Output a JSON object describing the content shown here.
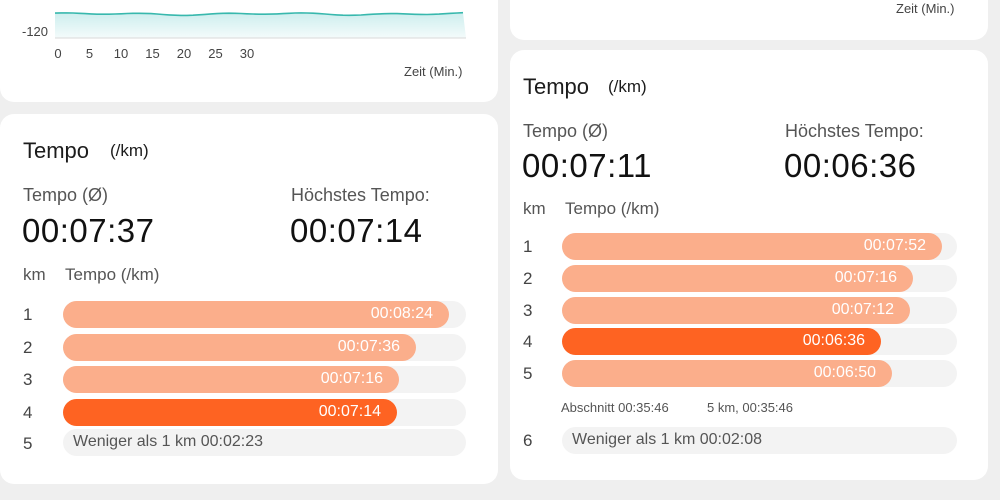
{
  "chart": {
    "y_tick_label": "-120",
    "x_ticks": [
      "0",
      "5",
      "10",
      "15",
      "20",
      "25",
      "30"
    ],
    "x_axis_title": "Zeit (Min.)",
    "line_color": "#38b8ad"
  },
  "top_right": {
    "x_axis_title": "Zeit (Min.)"
  },
  "left": {
    "title": "Tempo",
    "unit": "(/km)",
    "avg_label": "Tempo (Ø)",
    "avg_value": "00:07:37",
    "max_label": "Höchstes Tempo:",
    "max_value": "00:07:14",
    "col_km": "km",
    "col_tempo": "Tempo (/km)",
    "rows": [
      {
        "km": "1",
        "pace": "00:08:24",
        "fill": 0.958,
        "fastest": false
      },
      {
        "km": "2",
        "pace": "00:07:36",
        "fill": 0.875,
        "fastest": false
      },
      {
        "km": "3",
        "pace": "00:07:16",
        "fill": 0.833,
        "fastest": false
      },
      {
        "km": "4",
        "pace": "00:07:14",
        "fill": 0.829,
        "fastest": true
      }
    ],
    "rest": {
      "km": "5",
      "label": "Weniger als 1 km 00:02:23"
    }
  },
  "right": {
    "title": "Tempo",
    "unit": "(/km)",
    "avg_label": "Tempo (Ø)",
    "avg_value": "00:07:11",
    "max_label": "Höchstes Tempo:",
    "max_value": "00:06:36",
    "col_km": "km",
    "col_tempo": "Tempo (/km)",
    "rows": [
      {
        "km": "1",
        "pace": "00:07:52",
        "fill": 0.962,
        "fastest": false
      },
      {
        "km": "2",
        "pace": "00:07:16",
        "fill": 0.889,
        "fastest": false
      },
      {
        "km": "3",
        "pace": "00:07:12",
        "fill": 0.881,
        "fastest": false
      },
      {
        "km": "4",
        "pace": "00:06:36",
        "fill": 0.808,
        "fastest": true
      },
      {
        "km": "5",
        "pace": "00:06:50",
        "fill": 0.836,
        "fastest": false
      }
    ],
    "split_summary": "Abschnitt 00:35:46",
    "split_total": "5 km, 00:35:46",
    "rest": {
      "km": "6",
      "label": "Weniger als 1 km 00:02:08"
    }
  }
}
